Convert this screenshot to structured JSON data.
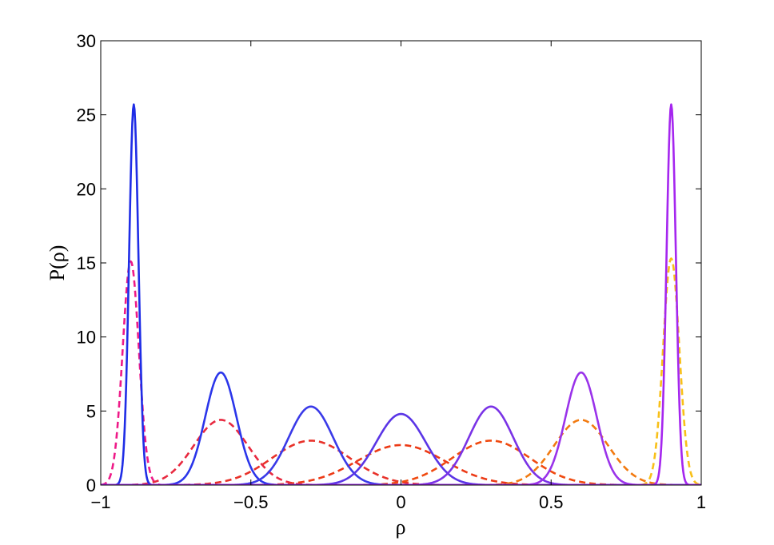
{
  "chart_data": {
    "type": "line",
    "title": "",
    "xlabel": "ρ",
    "ylabel": "P(ρ)",
    "xlim": [
      -1,
      1
    ],
    "ylim": [
      0,
      30
    ],
    "xticks": [
      -1,
      -0.5,
      0,
      0.5,
      1
    ],
    "xtick_labels": [
      "−1",
      "−0.5",
      "0",
      "0.5",
      "1"
    ],
    "yticks": [
      0,
      5,
      10,
      15,
      20,
      25,
      30
    ],
    "ytick_labels": [
      "0",
      "5",
      "10",
      "15",
      "20",
      "25",
      "30"
    ],
    "grid": false,
    "legend": "none",
    "series": [
      {
        "style": "solid",
        "color": "#1f2de6",
        "peak_x": -0.89,
        "peak_y": 25.7,
        "width": 0.0155
      },
      {
        "style": "solid",
        "color": "#2b36ea",
        "peak_x": -0.6,
        "peak_y": 7.6,
        "width": 0.052
      },
      {
        "style": "solid",
        "color": "#3a3ae8",
        "peak_x": -0.3,
        "peak_y": 5.3,
        "width": 0.074
      },
      {
        "style": "solid",
        "color": "#5a35e6",
        "peak_x": 0.0,
        "peak_y": 4.8,
        "width": 0.082
      },
      {
        "style": "solid",
        "color": "#7a33e6",
        "peak_x": 0.3,
        "peak_y": 5.3,
        "width": 0.074
      },
      {
        "style": "solid",
        "color": "#9a33ea",
        "peak_x": 0.6,
        "peak_y": 7.6,
        "width": 0.052
      },
      {
        "style": "solid",
        "color": "#a526ef",
        "peak_x": 0.9,
        "peak_y": 25.7,
        "width": 0.0155
      },
      {
        "style": "dashed",
        "color": "#ee1a88",
        "peak_x": -0.9,
        "peak_y": 15.1,
        "width": 0.027
      },
      {
        "style": "dashed",
        "color": "#e82a40",
        "peak_x": -0.6,
        "peak_y": 4.4,
        "width": 0.09
      },
      {
        "style": "dashed",
        "color": "#e8322a",
        "peak_x": -0.3,
        "peak_y": 3.0,
        "width": 0.13
      },
      {
        "style": "dashed",
        "color": "#ec3a16",
        "peak_x": 0.0,
        "peak_y": 2.7,
        "width": 0.145
      },
      {
        "style": "dashed",
        "color": "#f04a10",
        "peak_x": 0.3,
        "peak_y": 3.0,
        "width": 0.13
      },
      {
        "style": "dashed",
        "color": "#f27a10",
        "peak_x": 0.6,
        "peak_y": 4.4,
        "width": 0.09
      },
      {
        "style": "dashed",
        "color": "#f8c018",
        "peak_x": 0.9,
        "peak_y": 15.3,
        "width": 0.027
      }
    ]
  }
}
